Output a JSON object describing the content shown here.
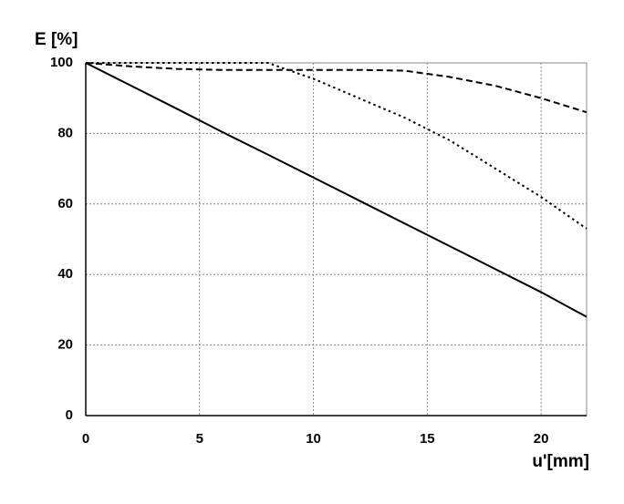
{
  "chart_data": {
    "type": "line",
    "y_label": "E [%]",
    "x_label": "u'[mm]",
    "x": [
      0,
      2,
      4,
      6,
      8,
      10,
      12,
      14,
      16,
      18,
      20,
      22
    ],
    "series": [
      {
        "color": "#000000",
        "dash": "solid",
        "values": [
          100,
          93.5,
          87,
          80.4,
          74,
          67.5,
          61,
          54.5,
          48,
          41.5,
          35,
          28
        ]
      },
      {
        "color": "#000000",
        "dash": "dashed",
        "values": [
          100,
          99,
          98.3,
          98,
          98,
          98,
          98,
          97.8,
          96,
          93.5,
          90,
          86
        ]
      },
      {
        "color": "#000000",
        "dash": "dotted",
        "values": [
          100,
          100,
          100,
          100,
          100,
          95.5,
          90,
          84.5,
          78,
          70,
          62,
          53
        ]
      }
    ],
    "xlim": [
      0,
      22
    ],
    "xticks": [
      0,
      5,
      10,
      15,
      20
    ],
    "ylim": [
      0,
      100
    ],
    "yticks": [
      0,
      20,
      40,
      60,
      80,
      100
    ],
    "grid": true
  }
}
